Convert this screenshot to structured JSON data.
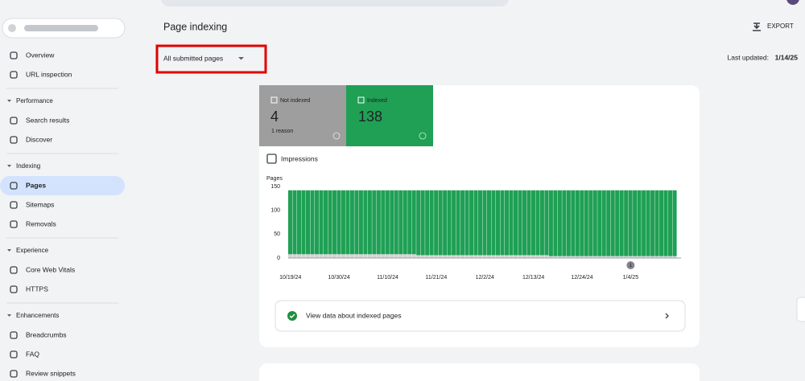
{
  "header": {
    "title": "Page indexing",
    "export": "EXPORT",
    "filter": "All submitted pages",
    "last_updated_label": "Last updated:",
    "last_updated": "1/14/25"
  },
  "nav": {
    "top": [
      "Overview",
      "URL inspection"
    ],
    "sections": [
      {
        "title": "Performance",
        "items": [
          "Search results",
          "Discover"
        ]
      },
      {
        "title": "Indexing",
        "items": [
          "Pages",
          "Sitemaps",
          "Removals"
        ]
      },
      {
        "title": "Experience",
        "items": [
          "Core Web Vitals",
          "HTTPS"
        ]
      },
      {
        "title": "Enhancements",
        "items": [
          "Breadcrumbs",
          "FAQ",
          "Review snippets"
        ]
      }
    ],
    "selected": "Pages"
  },
  "cards": {
    "not_indexed": {
      "value": "4",
      "note": "1 reason"
    },
    "indexed": {
      "value": "138"
    }
  },
  "impressions": "Impressions",
  "view_data": "View data about indexed pages",
  "chart_data": {
    "type": "stacked-bar",
    "y_label": "Pages",
    "categories": [
      "10/19/24",
      null,
      null,
      null,
      null,
      null,
      null,
      null,
      null,
      null,
      null,
      "10/30/24",
      null,
      null,
      null,
      null,
      null,
      null,
      null,
      null,
      null,
      null,
      "11/10/24",
      null,
      null,
      null,
      null,
      null,
      null,
      null,
      null,
      null,
      null,
      "11/21/24",
      null,
      null,
      null,
      null,
      null,
      null,
      null,
      null,
      null,
      null,
      "12/2/24",
      null,
      null,
      null,
      null,
      null,
      null,
      null,
      null,
      null,
      null,
      "12/13/24",
      null,
      null,
      null,
      null,
      null,
      null,
      null,
      null,
      null,
      null,
      "12/24/24",
      null,
      null,
      null,
      null,
      null,
      null,
      null,
      null,
      null,
      null,
      "1/4/25",
      null,
      null,
      null,
      null,
      null,
      null,
      null,
      null,
      null,
      null
    ],
    "series": [
      {
        "name": "Not indexed",
        "color": "#d4d4d4",
        "values": [
          8,
          8,
          8,
          8,
          8,
          8,
          8,
          8,
          8,
          8,
          8,
          8,
          8,
          8,
          8,
          8,
          8,
          8,
          8,
          8,
          8,
          8,
          8,
          8,
          8,
          8,
          8,
          8,
          8,
          6,
          6,
          6,
          6,
          6,
          6,
          6,
          6,
          6,
          6,
          6,
          6,
          6,
          6,
          6,
          6,
          6,
          6,
          6,
          6,
          6,
          6,
          6,
          6,
          6,
          6,
          6,
          6,
          6,
          6,
          4,
          4,
          4,
          4,
          4,
          4,
          4,
          4,
          4,
          4,
          4,
          4,
          4,
          4,
          4,
          4,
          4,
          4,
          4,
          4,
          4,
          4,
          4,
          4,
          4,
          4,
          4,
          4,
          4
        ]
      },
      {
        "name": "Indexed",
        "color": "#1fa055",
        "values": [
          134,
          134,
          134,
          134,
          134,
          134,
          134,
          134,
          134,
          134,
          134,
          134,
          134,
          134,
          134,
          134,
          134,
          134,
          134,
          134,
          134,
          134,
          134,
          134,
          134,
          134,
          134,
          134,
          134,
          136,
          136,
          136,
          136,
          136,
          136,
          136,
          136,
          136,
          136,
          136,
          136,
          136,
          136,
          136,
          136,
          136,
          136,
          136,
          136,
          136,
          136,
          136,
          136,
          136,
          136,
          136,
          136,
          136,
          136,
          138,
          138,
          138,
          138,
          138,
          138,
          138,
          138,
          138,
          138,
          138,
          138,
          138,
          138,
          138,
          138,
          138,
          138,
          138,
          138,
          138,
          138,
          138,
          138,
          138,
          138,
          138,
          138,
          138
        ]
      }
    ],
    "ylim": [
      0,
      150
    ],
    "yticks": [
      0,
      50,
      100,
      150
    ],
    "annotations": [
      {
        "x": "1/4/25",
        "text": "1"
      }
    ]
  }
}
